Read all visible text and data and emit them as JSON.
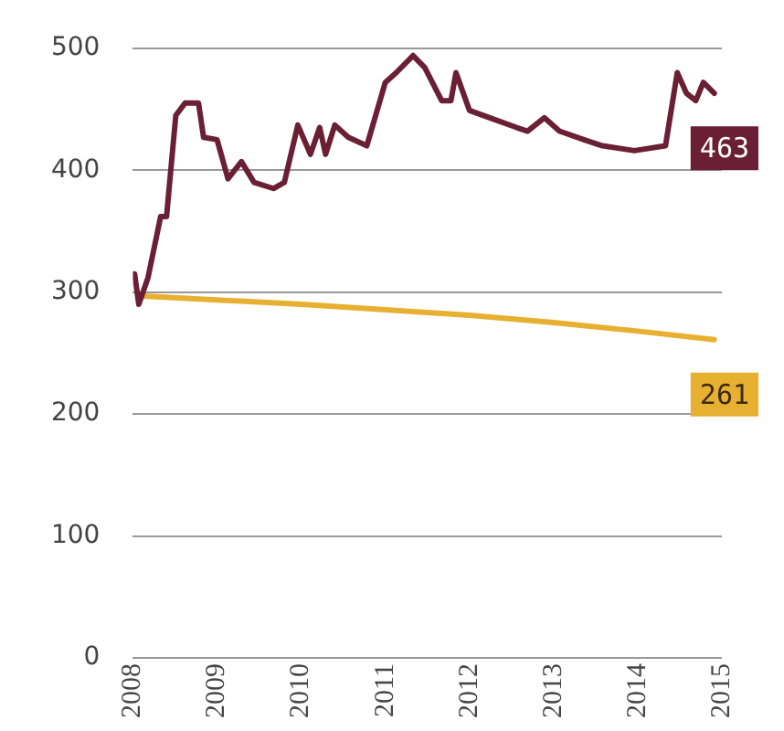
{
  "chart_data": {
    "type": "line",
    "x": [
      2008.02,
      2008.07,
      2008.18,
      2008.33,
      2008.4,
      2008.51,
      2008.62,
      2008.78,
      2008.84,
      2009.0,
      2009.13,
      2009.29,
      2009.44,
      2009.67,
      2009.8,
      2009.96,
      2010.11,
      2010.22,
      2010.29,
      2010.4,
      2010.56,
      2010.78,
      2011.0,
      2011.13,
      2011.33,
      2011.47,
      2011.67,
      2011.78,
      2011.84,
      2012.0,
      2012.24,
      2012.56,
      2012.69,
      2012.89,
      2013.07,
      2013.36,
      2013.58,
      2013.96,
      2014.33,
      2014.47,
      2014.58,
      2014.69,
      2014.78,
      2014.91
    ],
    "series": [
      {
        "color": "#6b1f35",
        "values": [
          315,
          290,
          312,
          362,
          362,
          445,
          455,
          455,
          427,
          425,
          393,
          407,
          390,
          385,
          390,
          437,
          413,
          435,
          413,
          437,
          427,
          420,
          472,
          480,
          494,
          484,
          457,
          457,
          480,
          449,
          443,
          435,
          432,
          443,
          432,
          425,
          420,
          416,
          420,
          480,
          463,
          457,
          472,
          463
        ],
        "value_labels": [
          null,
          null,
          null,
          null,
          null,
          null,
          null,
          null,
          null,
          null,
          null,
          null,
          null,
          null,
          null,
          null,
          null,
          null,
          null,
          null,
          null,
          null,
          null,
          null,
          null,
          null,
          null,
          null,
          null,
          null,
          null,
          null,
          null,
          null,
          null,
          null,
          null,
          null,
          null,
          null,
          null,
          null,
          null,
          "463"
        ]
      },
      {
        "color": "#e8b030",
        "x": [
          2008.07,
          2010.0,
          2012.0,
          2013.0,
          2014.0,
          2014.91
        ],
        "values": [
          297,
          290,
          281,
          275,
          268,
          261
        ],
        "value_labels": [
          null,
          null,
          null,
          null,
          null,
          "261"
        ]
      }
    ],
    "xlim": [
      2008,
      2015
    ],
    "xticks": [
      2008,
      2009,
      2010,
      2011,
      2012,
      2013,
      2014,
      2015
    ],
    "ylim": [
      0,
      500
    ],
    "yticks": [
      0,
      100,
      200,
      300,
      400,
      500
    ],
    "grid": "y",
    "legend": false,
    "marker": "none",
    "line_style": "solid"
  }
}
